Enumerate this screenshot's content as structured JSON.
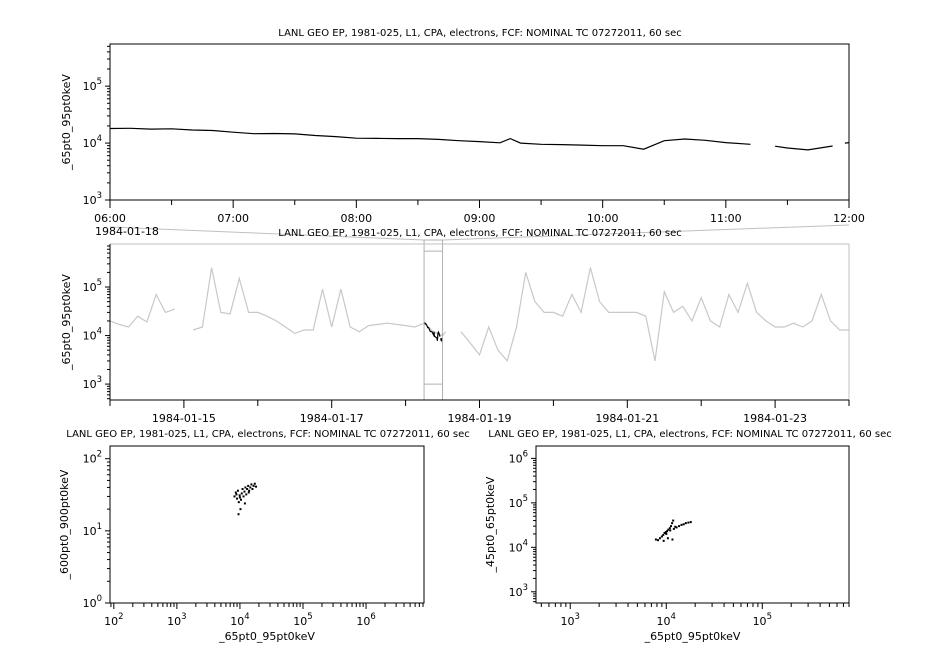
{
  "chart_data": [
    {
      "type": "line",
      "title": "LANL GEO EP, 1981-025, L1, CPA, electrons, FCF: NOMINAL TC 07272011, 60 sec",
      "xlabel": "",
      "ylabel": "_65pt0_95pt0keV",
      "yscale": "log",
      "ylim": [
        1000,
        550000
      ],
      "yticks": [
        1000,
        10000,
        100000
      ],
      "xlim": [
        "1984-01-18 06:00",
        "1984-01-18 12:00"
      ],
      "xticklabels": [
        "06:00",
        "07:00",
        "08:00",
        "09:00",
        "10:00",
        "11:00",
        "12:00"
      ],
      "date_label": "1984-01-18",
      "color": "#000000",
      "points": [
        [
          "06:00",
          18000
        ],
        [
          "06:10",
          18200
        ],
        [
          "06:20",
          17600
        ],
        [
          "06:30",
          17800
        ],
        [
          "06:40",
          17000
        ],
        [
          "06:50",
          16600
        ],
        [
          "07:00",
          15500
        ],
        [
          "07:10",
          14600
        ],
        [
          "07:20",
          14700
        ],
        [
          "07:30",
          14500
        ],
        [
          "07:40",
          13600
        ],
        [
          "07:50",
          13000
        ],
        [
          "08:00",
          12200
        ],
        [
          "08:10",
          12100
        ],
        [
          "08:20",
          12000
        ],
        [
          "08:30",
          12000
        ],
        [
          "08:40",
          11600
        ],
        [
          "08:50",
          11000
        ],
        [
          "09:00",
          10600
        ],
        [
          "09:10",
          10100
        ],
        [
          "09:15",
          12000
        ],
        [
          "09:20",
          10000
        ],
        [
          "09:30",
          9500
        ],
        [
          "09:40",
          9400
        ],
        [
          "09:50",
          9200
        ],
        [
          "10:00",
          9000
        ],
        [
          "10:10",
          9000
        ],
        [
          "10:20",
          7800
        ],
        [
          "10:30",
          11000
        ],
        [
          "10:40",
          11800
        ],
        [
          "10:50",
          11200
        ],
        [
          "11:00",
          10200
        ],
        [
          "11:12",
          9500
        ],
        [
          "11:18",
          null
        ],
        [
          "11:24",
          8800
        ],
        [
          "11:30",
          8200
        ],
        [
          "11:40",
          7600
        ],
        [
          "11:52",
          8900
        ],
        [
          "11:55",
          null
        ],
        [
          "11:58",
          10000
        ],
        [
          "12:00",
          10200
        ]
      ]
    },
    {
      "type": "line",
      "title": "LANL GEO EP, 1981-025, L1, CPA, electrons, FCF: NOMINAL TC 07272011, 60 sec",
      "xlabel": "",
      "ylabel": "_65pt0_95pt0keV",
      "yscale": "log",
      "ylim": [
        470,
        770000
      ],
      "yticks": [
        1000,
        10000,
        100000
      ],
      "xlim": [
        "1984-01-14",
        "1984-01-24"
      ],
      "xticklabels": [
        "1984-01-15",
        "1984-01-17",
        "1984-01-19",
        "1984-01-21",
        "1984-01-23"
      ],
      "highlight_range": [
        "1984-01-18 06:00",
        "1984-01-18 12:00"
      ],
      "color": "#c8c8c8",
      "highlight_color": "#000000",
      "points": [
        [
          "1984-01-14 00:00",
          20000
        ],
        [
          "1984-01-14 03:00",
          17000
        ],
        [
          "1984-01-14 06:00",
          15000
        ],
        [
          "1984-01-14 09:00",
          25000
        ],
        [
          "1984-01-14 12:00",
          19000
        ],
        [
          "1984-01-14 15:00",
          70000
        ],
        [
          "1984-01-14 18:00",
          30000
        ],
        [
          "1984-01-14 21:00",
          35000
        ],
        [
          "1984-01-15 00:00",
          null
        ],
        [
          "1984-01-15 03:00",
          13000
        ],
        [
          "1984-01-15 06:00",
          15000
        ],
        [
          "1984-01-15 09:00",
          250000
        ],
        [
          "1984-01-15 12:00",
          30000
        ],
        [
          "1984-01-15 15:00",
          28000
        ],
        [
          "1984-01-15 18:00",
          150000
        ],
        [
          "1984-01-15 21:00",
          30000
        ],
        [
          "1984-01-16 00:00",
          30000
        ],
        [
          "1984-01-16 03:00",
          25000
        ],
        [
          "1984-01-16 06:00",
          20000
        ],
        [
          "1984-01-16 09:00",
          15000
        ],
        [
          "1984-01-16 12:00",
          11000
        ],
        [
          "1984-01-16 15:00",
          13000
        ],
        [
          "1984-01-16 18:00",
          13000
        ],
        [
          "1984-01-16 21:00",
          90000
        ],
        [
          "1984-01-17 00:00",
          15000
        ],
        [
          "1984-01-17 03:00",
          90000
        ],
        [
          "1984-01-17 06:00",
          15000
        ],
        [
          "1984-01-17 09:00",
          12000
        ],
        [
          "1984-01-17 12:00",
          16000
        ],
        [
          "1984-01-17 15:00",
          17000
        ],
        [
          "1984-01-17 18:00",
          18000
        ],
        [
          "1984-01-17 21:00",
          17000
        ],
        [
          "1984-01-18 00:00",
          16000
        ],
        [
          "1984-01-18 03:00",
          15000
        ],
        [
          "1984-01-18 06:00",
          18000
        ],
        [
          "1984-01-18 09:00",
          12000
        ],
        [
          "1984-01-18 12:00",
          10000
        ],
        [
          "1984-01-18 13:00",
          12000
        ],
        [
          "1984-01-18 15:00",
          null
        ],
        [
          "1984-01-18 18:00",
          12000
        ],
        [
          "1984-01-18 21:00",
          7000
        ],
        [
          "1984-01-19 00:00",
          4000
        ],
        [
          "1984-01-19 03:00",
          15000
        ],
        [
          "1984-01-19 06:00",
          5000
        ],
        [
          "1984-01-19 09:00",
          3000
        ],
        [
          "1984-01-19 12:00",
          15000
        ],
        [
          "1984-01-19 15:00",
          200000
        ],
        [
          "1984-01-19 18:00",
          50000
        ],
        [
          "1984-01-19 21:00",
          30000
        ],
        [
          "1984-01-20 00:00",
          30000
        ],
        [
          "1984-01-20 03:00",
          25000
        ],
        [
          "1984-01-20 06:00",
          70000
        ],
        [
          "1984-01-20 09:00",
          30000
        ],
        [
          "1984-01-20 12:00",
          250000
        ],
        [
          "1984-01-20 15:00",
          50000
        ],
        [
          "1984-01-20 18:00",
          30000
        ],
        [
          "1984-01-20 21:00",
          30000
        ],
        [
          "1984-01-21 00:00",
          30000
        ],
        [
          "1984-01-21 03:00",
          30000
        ],
        [
          "1984-01-21 06:00",
          25000
        ],
        [
          "1984-01-21 09:00",
          3000
        ],
        [
          "1984-01-21 12:00",
          80000
        ],
        [
          "1984-01-21 15:00",
          30000
        ],
        [
          "1984-01-21 18:00",
          40000
        ],
        [
          "1984-01-21 21:00",
          20000
        ],
        [
          "1984-01-22 00:00",
          60000
        ],
        [
          "1984-01-22 03:00",
          20000
        ],
        [
          "1984-01-22 06:00",
          15000
        ],
        [
          "1984-01-22 09:00",
          70000
        ],
        [
          "1984-01-22 12:00",
          30000
        ],
        [
          "1984-01-22 15:00",
          120000
        ],
        [
          "1984-01-22 18:00",
          30000
        ],
        [
          "1984-01-22 21:00",
          20000
        ],
        [
          "1984-01-23 00:00",
          15000
        ],
        [
          "1984-01-23 03:00",
          15000
        ],
        [
          "1984-01-23 06:00",
          18000
        ],
        [
          "1984-01-23 09:00",
          15000
        ],
        [
          "1984-01-23 12:00",
          20000
        ],
        [
          "1984-01-23 15:00",
          70000
        ],
        [
          "1984-01-23 18:00",
          20000
        ],
        [
          "1984-01-23 21:00",
          13000
        ],
        [
          "1984-01-24 00:00",
          13000
        ]
      ]
    },
    {
      "type": "scatter",
      "title": "LANL GEO EP, 1981-025, L1, CPA, electrons, FCF: NOMINAL TC 07272011, 60 sec",
      "xlabel": "_65pt0_95pt0keV",
      "ylabel": "_600pt0_900pt0keV",
      "xscale": "log",
      "yscale": "log",
      "xlim": [
        87,
        8300000
      ],
      "ylim": [
        1,
        150
      ],
      "xticks": [
        100,
        1000,
        10000,
        100000,
        1000000
      ],
      "yticks": [
        1,
        10,
        100
      ],
      "color": "#000000",
      "points": [
        [
          8200,
          30
        ],
        [
          8600,
          34
        ],
        [
          9000,
          28
        ],
        [
          9300,
          36
        ],
        [
          9600,
          25
        ],
        [
          9900,
          31
        ],
        [
          10200,
          20
        ],
        [
          10400,
          27
        ],
        [
          10700,
          33
        ],
        [
          11000,
          38
        ],
        [
          11400,
          30
        ],
        [
          11800,
          35
        ],
        [
          12200,
          40
        ],
        [
          12600,
          32
        ],
        [
          13000,
          38
        ],
        [
          13500,
          42
        ],
        [
          14000,
          36
        ],
        [
          14600,
          40
        ],
        [
          15200,
          44
        ],
        [
          15800,
          38
        ],
        [
          16500,
          42
        ],
        [
          17200,
          45
        ],
        [
          18000,
          41
        ],
        [
          9500,
          17
        ],
        [
          12000,
          24
        ],
        [
          10000,
          29
        ],
        [
          8800,
          32
        ],
        [
          13800,
          34
        ]
      ]
    },
    {
      "type": "scatter",
      "title": "LANL GEO EP, 1981-025, L1, CPA, electrons, FCF: NOMINAL TC 07272011, 60 sec",
      "xlabel": "_65pt0_95pt0keV",
      "ylabel": "_45pt0_65pt0keV",
      "xscale": "log",
      "yscale": "log",
      "xlim": [
        440,
        800000
      ],
      "ylim": [
        560,
        1900000
      ],
      "xticks": [
        1000,
        10000,
        100000
      ],
      "yticks": [
        1000,
        10000,
        100000,
        1000000
      ],
      "color": "#000000",
      "points": [
        [
          7800,
          15000
        ],
        [
          8200,
          14500
        ],
        [
          8600,
          16000
        ],
        [
          9000,
          17500
        ],
        [
          9300,
          19000
        ],
        [
          9600,
          21000
        ],
        [
          9900,
          22000
        ],
        [
          10200,
          23000
        ],
        [
          10500,
          25000
        ],
        [
          10900,
          27000
        ],
        [
          11200,
          30000
        ],
        [
          11500,
          35000
        ],
        [
          11800,
          40000
        ],
        [
          11000,
          24000
        ],
        [
          12000,
          26000
        ],
        [
          12800,
          28000
        ],
        [
          13600,
          30000
        ],
        [
          14400,
          32000
        ],
        [
          15200,
          33000
        ],
        [
          16000,
          35000
        ],
        [
          17000,
          36000
        ],
        [
          18000,
          37000
        ],
        [
          9400,
          14000
        ],
        [
          10400,
          16000
        ],
        [
          11600,
          15000
        ],
        [
          10000,
          20000
        ],
        [
          12400,
          29000
        ]
      ]
    }
  ]
}
